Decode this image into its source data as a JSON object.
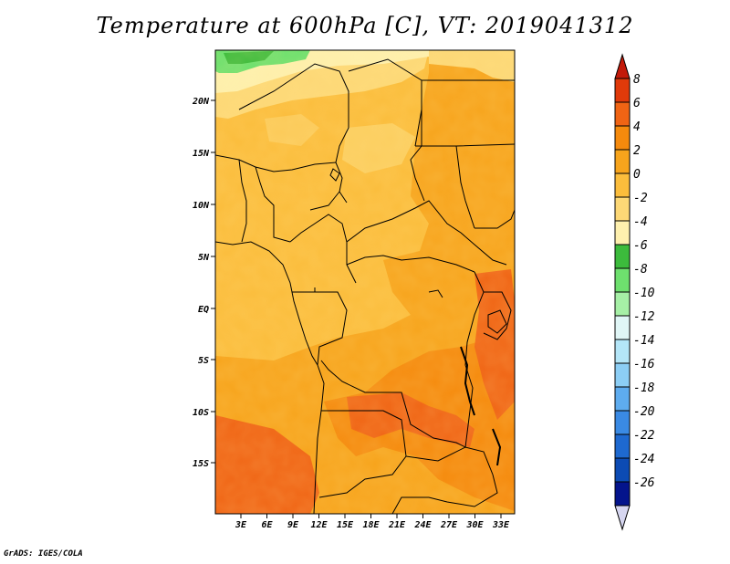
{
  "title": "Temperature at 600hPa [C], VT: 2019041312",
  "credit": "GrADS: IGES/COLA",
  "map": {
    "lat_labels": [
      "20N",
      "15N",
      "10N",
      "5N",
      "EQ",
      "5S",
      "10S",
      "15S"
    ],
    "lon_labels": [
      "3E",
      "6E",
      "9E",
      "12E",
      "15E",
      "18E",
      "21E",
      "24E",
      "27E",
      "30E",
      "33E"
    ]
  },
  "colorbar": {
    "levels": [
      "8",
      "6",
      "4",
      "2",
      "0",
      "-2",
      "-4",
      "-6",
      "-8",
      "-10",
      "-12",
      "-14",
      "-16",
      "-18",
      "-20",
      "-22",
      "-24",
      "-26"
    ],
    "colors": [
      "#e03a0a",
      "#f06414",
      "#f58a0d",
      "#f7a41c",
      "#fbbd3c",
      "#fdd876",
      "#fef0ae",
      "#3cbb3c",
      "#6ee06e",
      "#a6f0a6",
      "#e0f6f6",
      "#b4e6f8",
      "#8ccef5",
      "#5eacef",
      "#3a8ae4",
      "#1e69d0",
      "#0c4bb4",
      "#04148c"
    ],
    "top_arrow_color": "#c31a0a",
    "bottom_arrow_color": "#d6d6f0"
  }
}
